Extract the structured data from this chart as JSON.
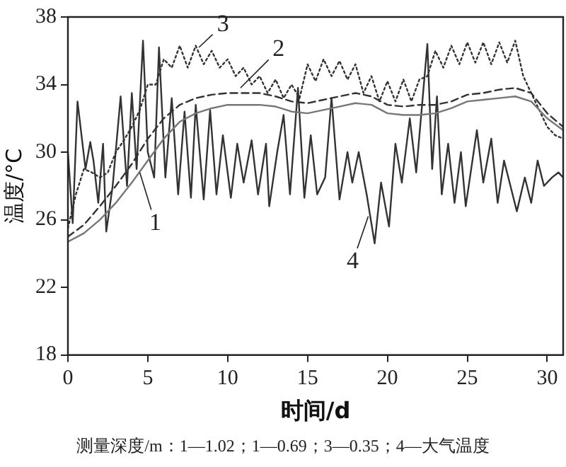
{
  "chart_data": {
    "type": "line",
    "xlabel": "时间/d",
    "ylabel": "温度/°C",
    "xlim": [
      0,
      31
    ],
    "ylim": [
      18,
      38
    ],
    "xticks": [
      0,
      5,
      10,
      15,
      20,
      25,
      30
    ],
    "yticks": [
      18,
      22,
      26,
      30,
      34,
      38
    ],
    "grid": false,
    "legend": false,
    "marker": "none",
    "series": [
      {
        "color": "#777777",
        "line_style": "solid",
        "x": [
          0,
          1,
          2,
          3,
          4,
          5,
          6,
          7,
          8,
          9,
          10,
          11,
          12,
          13,
          14,
          15,
          16,
          17,
          18,
          19,
          20,
          21,
          22,
          23,
          24,
          25,
          26,
          27,
          28,
          29,
          30,
          31
        ],
        "values": [
          24.7,
          25.2,
          26,
          27,
          28.2,
          29.5,
          30.8,
          31.8,
          32.3,
          32.6,
          32.8,
          32.8,
          32.8,
          32.7,
          32.4,
          32.3,
          32.5,
          32.7,
          32.9,
          32.8,
          32.3,
          32.2,
          32.2,
          32.3,
          32.6,
          33,
          33.1,
          33.2,
          33.3,
          33,
          32,
          31.3
        ]
      },
      {
        "color": "#333333",
        "line_style": "dashed",
        "x": [
          0,
          1,
          2,
          3,
          4,
          5,
          6,
          7,
          8,
          9,
          10,
          11,
          12,
          13,
          14,
          15,
          16,
          17,
          18,
          19,
          20,
          21,
          22,
          23,
          24,
          25,
          26,
          27,
          28,
          29,
          30,
          31
        ],
        "values": [
          25,
          25.7,
          26.8,
          28,
          29.3,
          30.8,
          32,
          32.8,
          33.2,
          33.4,
          33.5,
          33.5,
          33.5,
          33.3,
          33,
          32.9,
          33.1,
          33.3,
          33.5,
          33.3,
          32.8,
          32.7,
          32.8,
          32.8,
          33,
          33.4,
          33.5,
          33.7,
          33.8,
          33.5,
          32.3,
          31.5
        ]
      },
      {
        "color": "#333333",
        "line_style": "dotted",
        "x": [
          0,
          0.5,
          1,
          1.5,
          2,
          2.5,
          3,
          3.5,
          4,
          4.5,
          5,
          5.5,
          6,
          6.5,
          7,
          7.5,
          8,
          8.5,
          9,
          9.5,
          10,
          10.5,
          11,
          11.5,
          12,
          12.5,
          13,
          13.5,
          14,
          14.5,
          15,
          15.5,
          16,
          16.5,
          17,
          17.5,
          18,
          18.5,
          19,
          19.5,
          20,
          20.5,
          21,
          21.5,
          22,
          22.5,
          23,
          23.5,
          24,
          24.5,
          25,
          25.5,
          26,
          26.5,
          27,
          27.5,
          28,
          28.5,
          29,
          29.5,
          30,
          30.5,
          31
        ],
        "values": [
          25.5,
          27.5,
          29,
          28.8,
          28.5,
          28.8,
          30,
          30.7,
          31.5,
          32.5,
          34,
          34,
          35.5,
          35,
          36.3,
          35,
          36.3,
          35.2,
          36,
          35,
          35.5,
          34.5,
          35,
          34,
          34.5,
          33.5,
          34.3,
          33.2,
          34,
          33.2,
          35.2,
          34.2,
          35.5,
          34.5,
          35.4,
          34.3,
          35.2,
          33.5,
          34.5,
          33,
          34.2,
          33,
          34.3,
          33,
          34.3,
          34.5,
          36,
          35,
          36.3,
          35.2,
          36.5,
          35.3,
          36.5,
          35.2,
          36.5,
          35.3,
          36.6,
          34.5,
          33.5,
          32.5,
          31.5,
          31,
          30.8
        ]
      },
      {
        "color": "#333333",
        "line_style": "solid",
        "x": [
          0,
          0.3,
          0.6,
          1.1,
          1.4,
          1.6,
          1.9,
          2.2,
          2.4,
          2.8,
          3.3,
          3.7,
          4.0,
          4.3,
          4.7,
          5.0,
          5.4,
          5.7,
          6.1,
          6.5,
          6.9,
          7.3,
          7.7,
          8.0,
          8.5,
          8.9,
          9.3,
          9.7,
          10.2,
          10.6,
          11.0,
          11.5,
          11.9,
          12.4,
          12.6,
          13.1,
          13.5,
          13.9,
          14.4,
          14.8,
          15.2,
          15.6,
          16.1,
          16.5,
          17.0,
          17.5,
          17.8,
          18.2,
          18.7,
          19.2,
          19.6,
          20.1,
          20.5,
          20.9,
          21.4,
          21.8,
          22.5,
          22.8,
          23.1,
          23.4,
          23.8,
          24.2,
          24.6,
          24.9,
          25.6,
          26.0,
          26.5,
          26.9,
          27.3,
          27.7,
          28.1,
          28.6,
          29.0,
          29.4,
          29.8,
          30.3,
          30.7,
          31
        ],
        "values": [
          30,
          25.8,
          33,
          29,
          30.6,
          29.5,
          27,
          30.5,
          25.3,
          28,
          33.3,
          28,
          33.5,
          29,
          36.6,
          30,
          28.5,
          36.2,
          28.5,
          33.2,
          27.5,
          32.4,
          27.3,
          32.8,
          27.2,
          32.5,
          27.5,
          31,
          27.3,
          30.5,
          28.2,
          30.7,
          27.5,
          30.5,
          26.8,
          30,
          32.2,
          27.5,
          33.8,
          27.3,
          31,
          27.5,
          28.5,
          33.2,
          27.2,
          30,
          28.2,
          30,
          27.5,
          24.6,
          28.2,
          25.6,
          30.5,
          28.2,
          32,
          28.8,
          36.4,
          29,
          33.3,
          27.5,
          30.5,
          27,
          30,
          26.8,
          31.3,
          28.2,
          30.8,
          27,
          29.5,
          28,
          26.5,
          28.5,
          27,
          29.5,
          28,
          28.5,
          28.8,
          28.5
        ]
      }
    ],
    "annotations": [
      {
        "text": "1",
        "x": 4.5,
        "y": 28.8
      },
      {
        "text": "2",
        "x": 10.8,
        "y": 33.8
      },
      {
        "text": "3",
        "x": 8.2,
        "y": 36.2
      },
      {
        "text": "4",
        "x": 18.8,
        "y": 26.2
      },
      "测量深度/m：1—1.02；1—0.69；3—0.35；4—大气温度"
    ]
  }
}
